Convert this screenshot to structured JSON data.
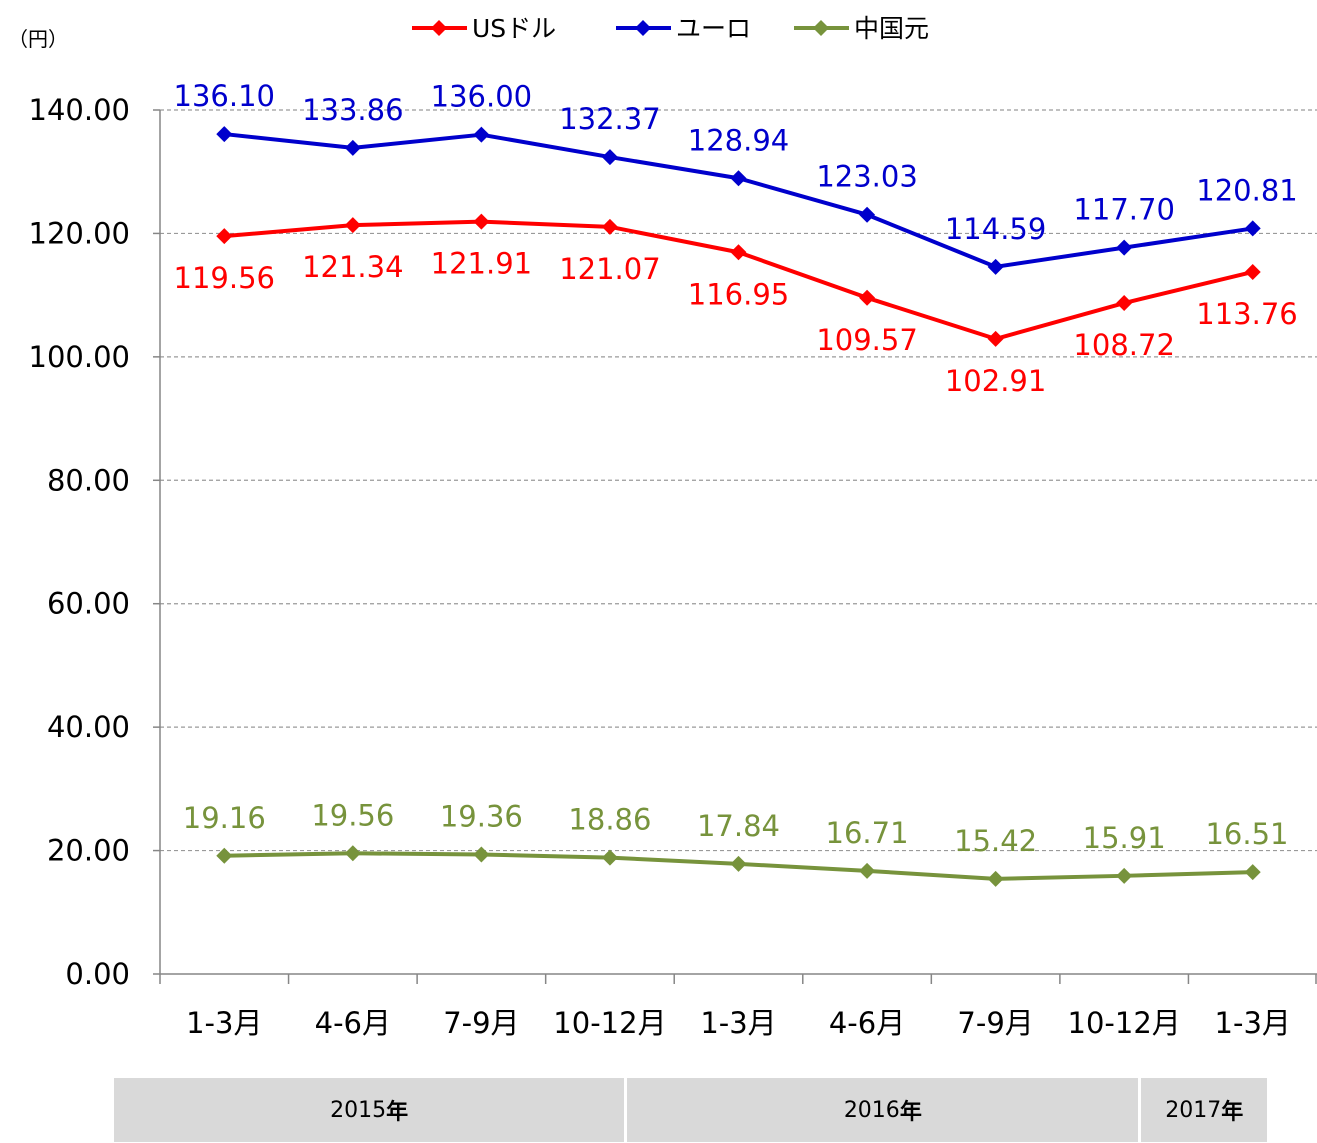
{
  "chart_data": {
    "type": "line",
    "ylabel": "（円）",
    "ylim": [
      0,
      140
    ],
    "yticks": [
      "0.00",
      "20.00",
      "40.00",
      "60.00",
      "80.00",
      "100.00",
      "120.00",
      "140.00"
    ],
    "categories": [
      "1-3月",
      "4-6月",
      "7-9月",
      "10-12月",
      "1-3月",
      "4-6月",
      "7-9月",
      "10-12月",
      "1-3月"
    ],
    "series": [
      {
        "name": "USドル",
        "color": "#ff0000",
        "values": [
          119.56,
          121.34,
          121.91,
          121.07,
          116.95,
          109.57,
          102.91,
          108.72,
          113.76
        ],
        "labels": [
          "119.56",
          "121.34",
          "121.91",
          "121.07",
          "116.95",
          "109.57",
          "102.91",
          "108.72",
          "113.76"
        ]
      },
      {
        "name": "ユーロ",
        "color": "#0000cc",
        "values": [
          136.1,
          133.86,
          136.0,
          132.37,
          128.94,
          123.03,
          114.59,
          117.7,
          120.81
        ],
        "labels": [
          "136.10",
          "133.86",
          "136.00",
          "132.37",
          "128.94",
          "123.03",
          "114.59",
          "117.70",
          "120.81"
        ]
      },
      {
        "name": "中国元",
        "color": "#77933c",
        "values": [
          19.16,
          19.56,
          19.36,
          18.86,
          17.84,
          16.71,
          15.42,
          15.91,
          16.51
        ],
        "labels": [
          "19.16",
          "19.56",
          "19.36",
          "18.86",
          "17.84",
          "16.71",
          "15.42",
          "15.91",
          "16.51"
        ]
      }
    ],
    "grid": true,
    "legend": "top-center",
    "year_groups": [
      {
        "number": "2015",
        "suffix": "年",
        "span": [
          0,
          3
        ]
      },
      {
        "number": "2016",
        "suffix": "年",
        "span": [
          4,
          7
        ]
      },
      {
        "number": "2017",
        "suffix": "年",
        "span": [
          8,
          8
        ]
      }
    ]
  }
}
